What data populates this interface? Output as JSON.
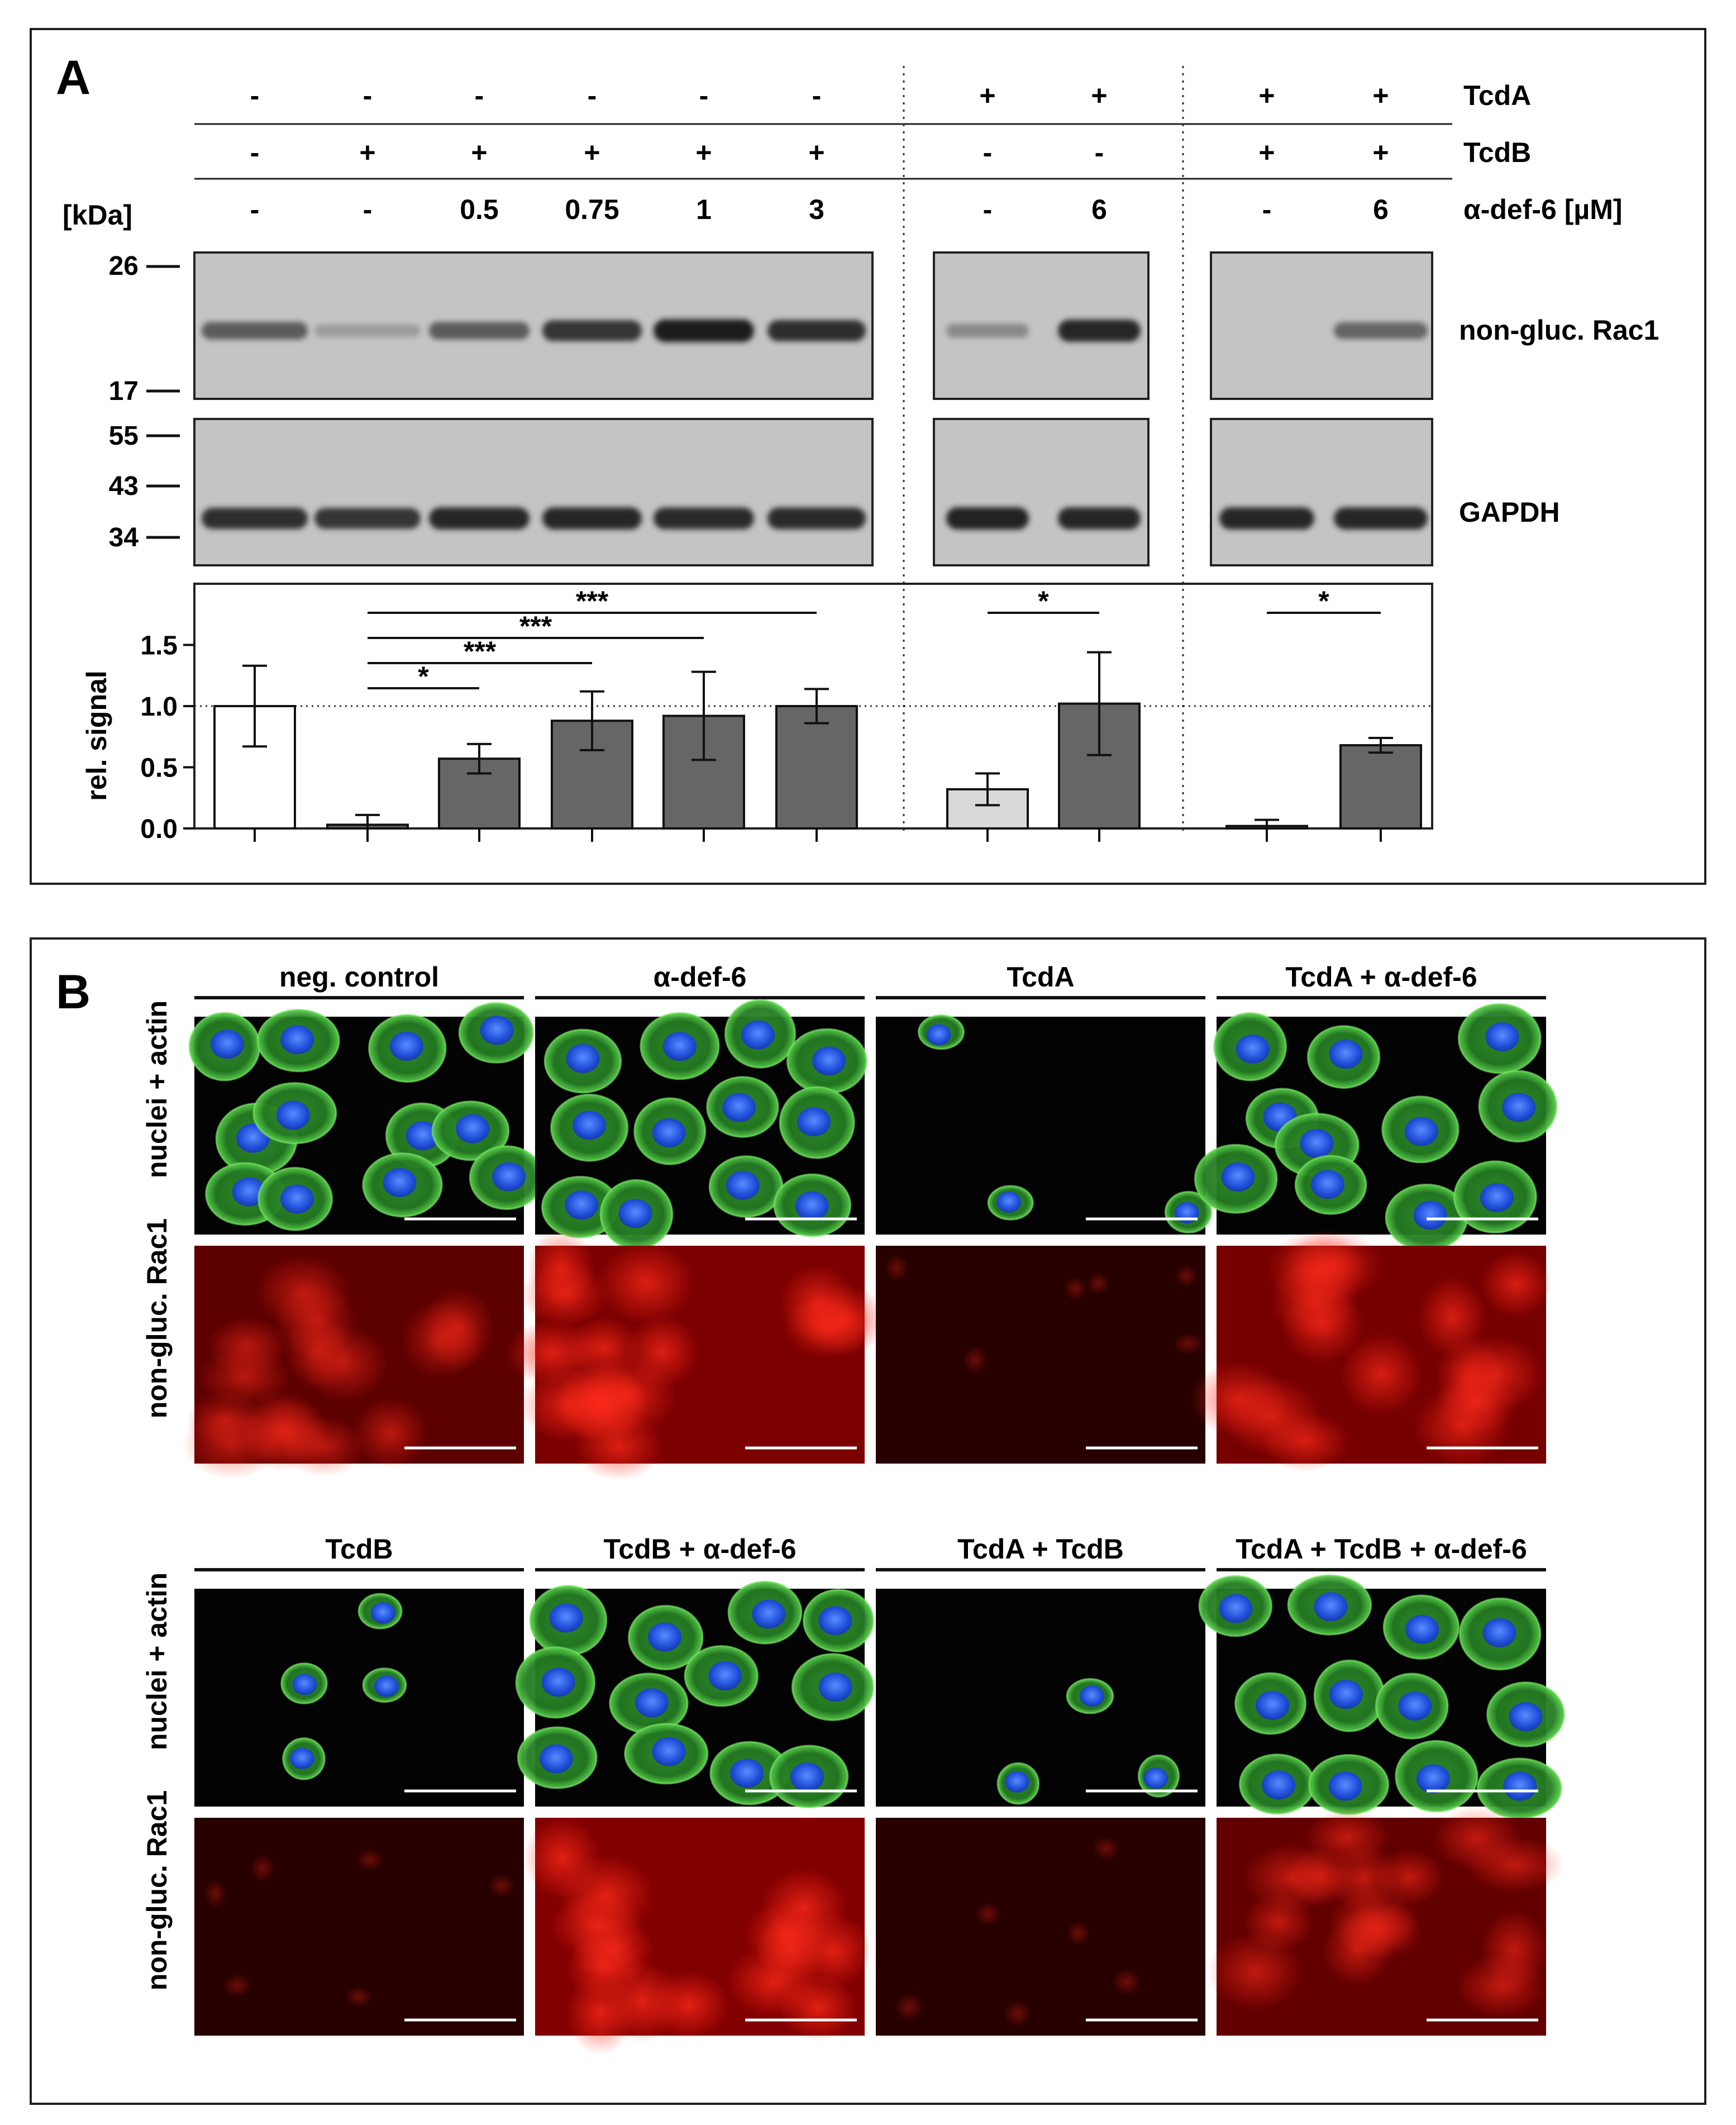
{
  "panel_a": {
    "letter": "A",
    "conditions": [
      {
        "label": "TcdA",
        "values": [
          "-",
          "-",
          "-",
          "-",
          "-",
          "-",
          "+",
          "+",
          "+",
          "+"
        ]
      },
      {
        "label": "TcdB",
        "values": [
          "-",
          "+",
          "+",
          "+",
          "+",
          "+",
          "-",
          "-",
          "+",
          "+"
        ]
      },
      {
        "label": "α-def-6 [µM]",
        "values": [
          "-",
          "-",
          "0.5",
          "0.75",
          "1",
          "3",
          "-",
          "6",
          "-",
          "6"
        ]
      }
    ],
    "kda_label": "[kDa]",
    "blots": [
      {
        "name": "non-gluc. Rac1",
        "markers": [
          "26",
          "17"
        ],
        "intensity": [
          0.6,
          0.25,
          0.6,
          0.82,
          0.95,
          0.85,
          0.35,
          0.9,
          0.0,
          0.55
        ]
      },
      {
        "name": "GAPDH",
        "markers": [
          "55",
          "43",
          "34"
        ],
        "intensity": [
          0.85,
          0.82,
          0.9,
          0.9,
          0.88,
          0.88,
          0.92,
          0.9,
          0.9,
          0.9
        ]
      }
    ]
  },
  "chart_data": {
    "type": "bar",
    "ylabel": "rel. signal",
    "ylim": [
      0.0,
      2.0
    ],
    "yticks": [
      "0.0",
      "0.5",
      "1.0",
      "1.5"
    ],
    "reference_line": 1.0,
    "groups": [
      [
        0,
        1,
        2,
        3,
        4,
        5
      ],
      [
        6,
        7
      ],
      [
        8,
        9
      ]
    ],
    "values": [
      1.0,
      0.03,
      0.57,
      0.88,
      0.92,
      1.0,
      0.32,
      1.02,
      0.02,
      0.68
    ],
    "errors": [
      0.33,
      0.08,
      0.12,
      0.24,
      0.36,
      0.14,
      0.13,
      0.42,
      0.05,
      0.06
    ],
    "bar_colors": [
      "#ffffff",
      "#666666",
      "#666666",
      "#666666",
      "#666666",
      "#666666",
      "#d9d9d9",
      "#666666",
      "#666666",
      "#666666"
    ],
    "significance": [
      {
        "from": 1,
        "to": 2,
        "label": "*"
      },
      {
        "from": 1,
        "to": 3,
        "label": "***"
      },
      {
        "from": 1,
        "to": 4,
        "label": "***"
      },
      {
        "from": 1,
        "to": 5,
        "label": "***"
      },
      {
        "from": 6,
        "to": 7,
        "label": "*"
      },
      {
        "from": 8,
        "to": 9,
        "label": "*"
      }
    ]
  },
  "panel_b": {
    "letter": "B",
    "row_labels": [
      "nuclei + actin",
      "non-gluc. Rac1"
    ],
    "blocks": [
      {
        "conditions": [
          {
            "title": "neg. control",
            "density": 1.0,
            "rac": 0.55
          },
          {
            "title": "α-def-6",
            "density": 1.0,
            "rac": 0.8
          },
          {
            "title": "TcdA",
            "density": 0.35,
            "rac": 0.15
          },
          {
            "title": "TcdA + α-def-6",
            "density": 0.85,
            "rac": 0.75
          }
        ]
      },
      {
        "conditions": [
          {
            "title": "TcdB",
            "density": 0.35,
            "rac": 0.15
          },
          {
            "title": "TcdB + α-def-6",
            "density": 1.0,
            "rac": 0.85
          },
          {
            "title": "TcdA + TcdB",
            "density": 0.4,
            "rac": 0.15
          },
          {
            "title": "TcdA + TcdB + α-def-6",
            "density": 0.95,
            "rac": 0.6
          }
        ]
      }
    ]
  }
}
